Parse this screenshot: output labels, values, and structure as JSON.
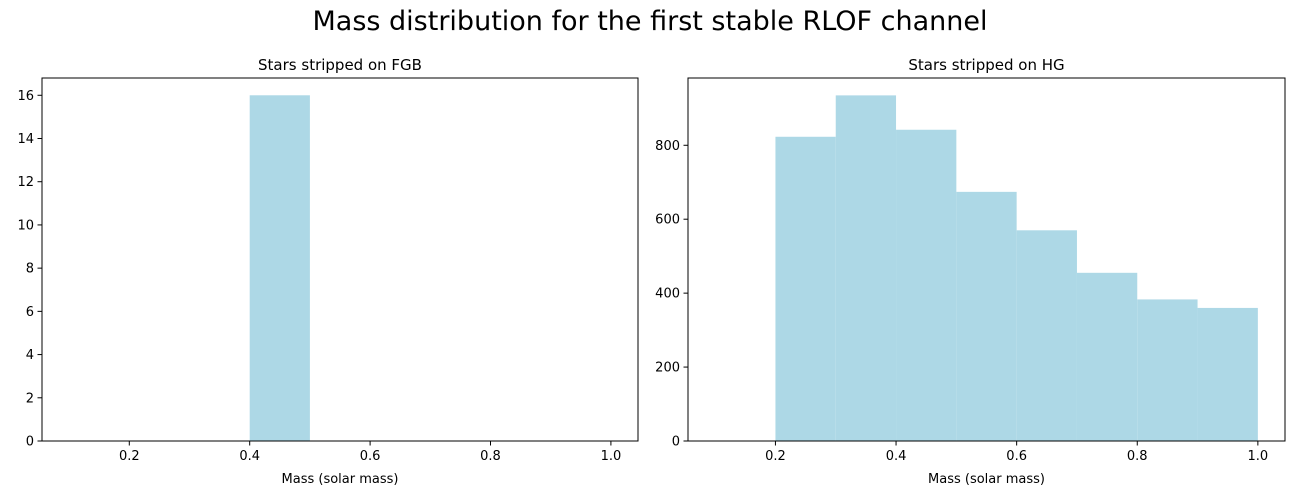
{
  "figure": {
    "suptitle": "Mass distribution for the first stable RLOF channel"
  },
  "chart_data": [
    {
      "type": "bar",
      "title": "Stars stripped on FGB",
      "xlabel": "Mass (solar mass)",
      "ylabel": "",
      "xlim": [
        0.055,
        1.045
      ],
      "ylim": [
        0,
        16.8
      ],
      "xticks": [
        0.2,
        0.4,
        0.6,
        0.8,
        1.0
      ],
      "xtick_labels": [
        "0.2",
        "0.4",
        "0.6",
        "0.8",
        "1.0"
      ],
      "yticks": [
        0,
        2,
        4,
        6,
        8,
        10,
        12,
        14,
        16
      ],
      "ytick_labels": [
        "0",
        "2",
        "4",
        "6",
        "8",
        "10",
        "12",
        "14",
        "16"
      ],
      "bin_edges": [
        0.4,
        0.5
      ],
      "values": [
        16
      ],
      "color": "#add8e6",
      "grid": false,
      "legend": "none"
    },
    {
      "type": "bar",
      "title": "Stars stripped on HG",
      "xlabel": "Mass (solar mass)",
      "ylabel": "",
      "xlim": [
        0.055,
        1.045
      ],
      "ylim": [
        0,
        982
      ],
      "xticks": [
        0.2,
        0.4,
        0.6,
        0.8,
        1.0
      ],
      "xtick_labels": [
        "0.2",
        "0.4",
        "0.6",
        "0.8",
        "1.0"
      ],
      "yticks": [
        0,
        200,
        400,
        600,
        800
      ],
      "ytick_labels": [
        "0",
        "200",
        "400",
        "600",
        "800"
      ],
      "bin_edges": [
        0.2,
        0.3,
        0.4,
        0.5,
        0.6,
        0.7,
        0.8,
        0.9,
        1.0
      ],
      "values": [
        823,
        935,
        842,
        674,
        570,
        455,
        383,
        360
      ],
      "color": "#add8e6",
      "grid": false,
      "legend": "none"
    }
  ]
}
